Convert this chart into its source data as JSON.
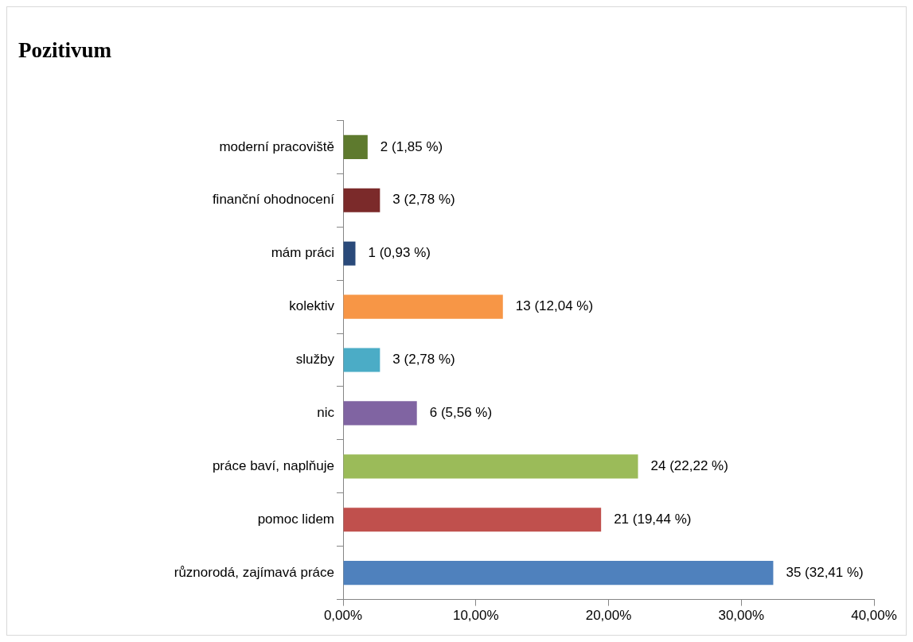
{
  "chart_data": {
    "type": "bar",
    "orientation": "horizontal",
    "title": "Pozitivum",
    "categories": [
      "moderní pracoviště",
      "finanční ohodnocení",
      "mám práci",
      "kolektiv",
      "služby",
      "nic",
      "práce baví, naplňuje",
      "pomoc lidem",
      "různorodá, zajímavá práce"
    ],
    "values": [
      1.85,
      2.78,
      0.93,
      12.04,
      2.78,
      5.56,
      22.22,
      19.44,
      32.41
    ],
    "colors": [
      "#5e7a2e",
      "#7b2a2a",
      "#2a4a7a",
      "#f79646",
      "#4bacc6",
      "#8064a2",
      "#9bbb59",
      "#c0504d",
      "#4f81bd"
    ],
    "value_labels": [
      "2 (1,85 %)",
      "3 (2,78 %)",
      "1 (0,93 %)",
      "13 (12,04 %)",
      "3 (2,78 %)",
      "6 (5,56 %)",
      "24 (22,22 %)",
      "21 (19,44 %)",
      "35 (32,41 %)"
    ],
    "xlim": [
      0,
      40
    ],
    "xticks": [
      {
        "value": 0,
        "label": "0,00%"
      },
      {
        "value": 10,
        "label": "10,00%"
      },
      {
        "value": 20,
        "label": "20,00%"
      },
      {
        "value": 30,
        "label": "30,00%"
      },
      {
        "value": 40,
        "label": "40,00%"
      }
    ],
    "grid": false,
    "legend": false
  }
}
